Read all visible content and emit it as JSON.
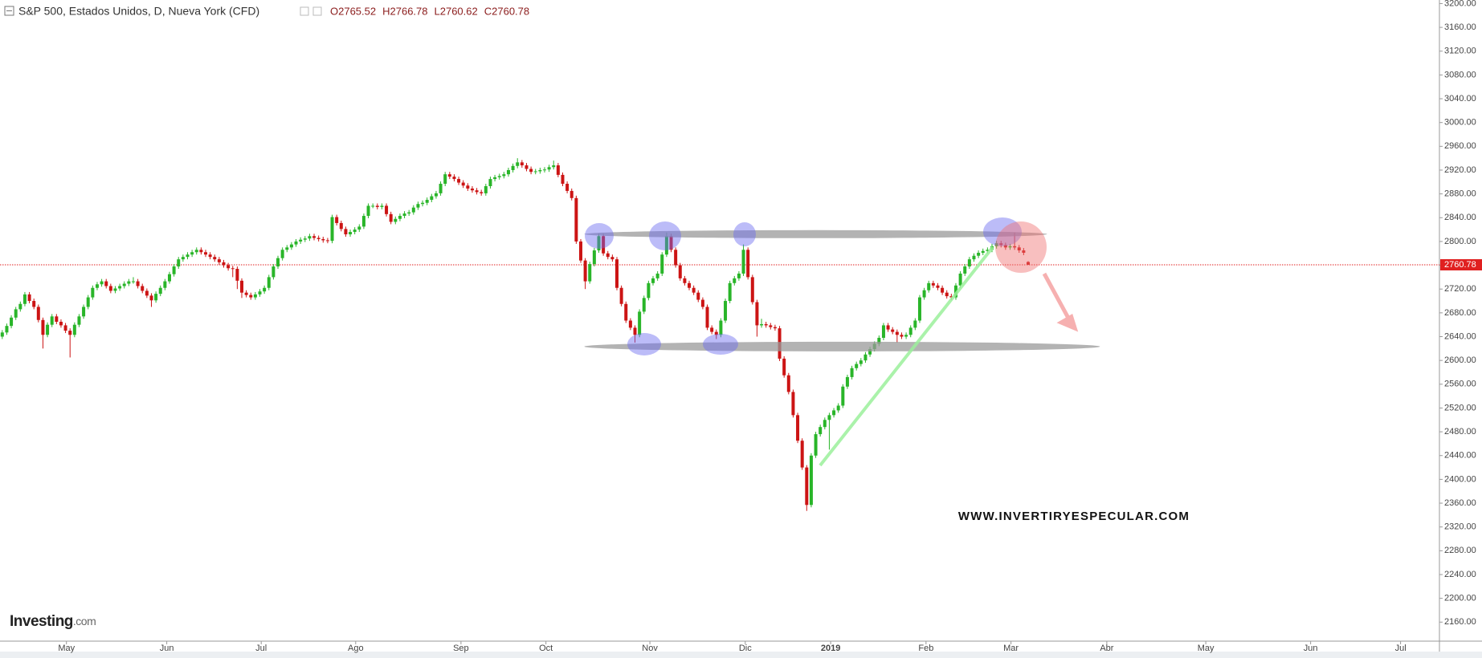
{
  "chart_data": {
    "type": "candlestick",
    "title": "S&P 500, Estados Unidos, D, Nueva York (CFD)",
    "ohlc_header": [
      "O2765.52",
      "H2766.78",
      "L2760.62",
      "C2760.78"
    ],
    "watermark": "WWW.INVERTIRYESPECULAR.COM",
    "logo": "Investing",
    "logo_suffix": ".com",
    "last_price": 2760.78,
    "last_price_label": "2760.78",
    "up_color": "#29b529",
    "down_color": "#cc1414",
    "grid": false,
    "xlim": [
      -0.5,
      318
    ],
    "ylim": [
      2128,
      3206
    ],
    "xticks": [
      {
        "value": 14.2,
        "label": "May"
      },
      {
        "value": 36.4,
        "label": "Jun"
      },
      {
        "value": 57.3,
        "label": "Jul"
      },
      {
        "value": 78.2,
        "label": "Ago"
      },
      {
        "value": 101.5,
        "label": "Sep"
      },
      {
        "value": 120.3,
        "label": "Oct"
      },
      {
        "value": 143.3,
        "label": "Nov"
      },
      {
        "value": 164.4,
        "label": "Dic"
      },
      {
        "value": 183.3,
        "label": "2019"
      },
      {
        "value": 204.4,
        "label": "Feb"
      },
      {
        "value": 223.2,
        "label": "Mar"
      },
      {
        "value": 244.4,
        "label": "Abr"
      },
      {
        "value": 266.3,
        "label": "May"
      },
      {
        "value": 289.5,
        "label": "Jun"
      },
      {
        "value": 309.4,
        "label": "Jul"
      }
    ],
    "yticks": [
      {
        "value": 2160,
        "label": "2160.00"
      },
      {
        "value": 2200,
        "label": "2200.00"
      },
      {
        "value": 2240,
        "label": "2240.00"
      },
      {
        "value": 2280,
        "label": "2280.00"
      },
      {
        "value": 2320,
        "label": "2320.00"
      },
      {
        "value": 2360,
        "label": "2360.00"
      },
      {
        "value": 2400,
        "label": "2400.00"
      },
      {
        "value": 2440,
        "label": "2440.00"
      },
      {
        "value": 2480,
        "label": "2480.00"
      },
      {
        "value": 2520,
        "label": "2520.00"
      },
      {
        "value": 2560,
        "label": "2560.00"
      },
      {
        "value": 2600,
        "label": "2600.00"
      },
      {
        "value": 2640,
        "label": "2640.00"
      },
      {
        "value": 2680,
        "label": "2680.00"
      },
      {
        "value": 2720,
        "label": "2720.00"
      },
      {
        "value": 2760,
        "label": "2760.00"
      },
      {
        "value": 2800,
        "label": "2800.00"
      },
      {
        "value": 2840,
        "label": "2840.00"
      },
      {
        "value": 2880,
        "label": "2880.00"
      },
      {
        "value": 2920,
        "label": "2920.00"
      },
      {
        "value": 2960,
        "label": "2960.00"
      },
      {
        "value": 3000,
        "label": "3000.00"
      },
      {
        "value": 3040,
        "label": "3040.00"
      },
      {
        "value": 3080,
        "label": "3080.00"
      },
      {
        "value": 3120,
        "label": "3120.00"
      },
      {
        "value": 3160,
        "label": "3160.00"
      },
      {
        "value": 3200,
        "label": "3200.00"
      }
    ],
    "candles": [
      [
        2640,
        2651,
        2636,
        2647
      ],
      [
        2647,
        2662,
        2643,
        2658
      ],
      [
        2658,
        2676,
        2654,
        2672
      ],
      [
        2672,
        2690,
        2668,
        2686
      ],
      [
        2686,
        2699,
        2682,
        2695
      ],
      [
        2695,
        2715,
        2691,
        2711
      ],
      [
        2711,
        2715,
        2696,
        2700
      ],
      [
        2700,
        2704,
        2686,
        2690
      ],
      [
        2690,
        2694,
        2664,
        2668
      ],
      [
        2668,
        2672,
        2620,
        2643
      ],
      [
        2643,
        2664,
        2639,
        2660
      ],
      [
        2660,
        2678,
        2656,
        2674
      ],
      [
        2674,
        2678,
        2661,
        2665
      ],
      [
        2665,
        2669,
        2655,
        2659
      ],
      [
        2659,
        2663,
        2646,
        2650
      ],
      [
        2650,
        2654,
        2605,
        2643
      ],
      [
        2643,
        2664,
        2639,
        2660
      ],
      [
        2660,
        2678,
        2656,
        2674
      ],
      [
        2674,
        2694,
        2670,
        2690
      ],
      [
        2690,
        2710,
        2686,
        2706
      ],
      [
        2706,
        2726,
        2702,
        2722
      ],
      [
        2722,
        2732,
        2718,
        2728
      ],
      [
        2728,
        2737,
        2724,
        2733
      ],
      [
        2733,
        2737,
        2721,
        2725
      ],
      [
        2725,
        2729,
        2713,
        2717
      ],
      [
        2717,
        2725,
        2713,
        2721
      ],
      [
        2721,
        2729,
        2717,
        2725
      ],
      [
        2725,
        2733,
        2721,
        2729
      ],
      [
        2729,
        2737,
        2725,
        2733
      ],
      [
        2733,
        2740,
        2729,
        2733
      ],
      [
        2733,
        2737,
        2721,
        2725
      ],
      [
        2725,
        2729,
        2713,
        2717
      ],
      [
        2717,
        2721,
        2705,
        2709
      ],
      [
        2709,
        2713,
        2690,
        2701
      ],
      [
        2701,
        2716,
        2697,
        2712
      ],
      [
        2712,
        2726,
        2708,
        2722
      ],
      [
        2722,
        2737,
        2718,
        2733
      ],
      [
        2733,
        2749,
        2729,
        2745
      ],
      [
        2745,
        2762,
        2741,
        2758
      ],
      [
        2758,
        2774,
        2754,
        2770
      ],
      [
        2770,
        2778,
        2766,
        2774
      ],
      [
        2774,
        2782,
        2770,
        2778
      ],
      [
        2778,
        2786,
        2774,
        2782
      ],
      [
        2782,
        2790,
        2778,
        2786
      ],
      [
        2786,
        2790,
        2778,
        2782
      ],
      [
        2782,
        2786,
        2774,
        2778
      ],
      [
        2778,
        2782,
        2770,
        2774
      ],
      [
        2774,
        2778,
        2766,
        2770
      ],
      [
        2770,
        2774,
        2761,
        2765
      ],
      [
        2765,
        2769,
        2756,
        2760
      ],
      [
        2760,
        2764,
        2751,
        2755
      ],
      [
        2755,
        2759,
        2740,
        2754
      ],
      [
        2754,
        2758,
        2720,
        2734
      ],
      [
        2734,
        2738,
        2705,
        2714
      ],
      [
        2714,
        2718,
        2706,
        2710
      ],
      [
        2710,
        2714,
        2702,
        2706
      ],
      [
        2706,
        2715,
        2702,
        2711
      ],
      [
        2711,
        2720,
        2707,
        2716
      ],
      [
        2716,
        2726,
        2712,
        2722
      ],
      [
        2722,
        2744,
        2718,
        2740
      ],
      [
        2740,
        2762,
        2736,
        2758
      ],
      [
        2758,
        2776,
        2754,
        2772
      ],
      [
        2772,
        2790,
        2768,
        2786
      ],
      [
        2786,
        2794,
        2782,
        2790
      ],
      [
        2790,
        2799,
        2786,
        2795
      ],
      [
        2795,
        2804,
        2791,
        2800
      ],
      [
        2800,
        2807,
        2796,
        2803
      ],
      [
        2803,
        2809,
        2799,
        2805
      ],
      [
        2805,
        2813,
        2801,
        2809
      ],
      [
        2809,
        2813,
        2802,
        2806
      ],
      [
        2806,
        2810,
        2800,
        2804
      ],
      [
        2804,
        2808,
        2798,
        2802
      ],
      [
        2802,
        2806,
        2797,
        2801
      ],
      [
        2801,
        2845,
        2797,
        2841
      ],
      [
        2841,
        2845,
        2827,
        2831
      ],
      [
        2831,
        2835,
        2817,
        2821
      ],
      [
        2821,
        2825,
        2808,
        2812
      ],
      [
        2812,
        2820,
        2808,
        2816
      ],
      [
        2816,
        2824,
        2812,
        2820
      ],
      [
        2820,
        2829,
        2816,
        2825
      ],
      [
        2825,
        2847,
        2821,
        2843
      ],
      [
        2843,
        2864,
        2839,
        2860
      ],
      [
        2860,
        2864,
        2856,
        2860
      ],
      [
        2860,
        2864,
        2854,
        2858
      ],
      [
        2858,
        2864,
        2854,
        2860
      ],
      [
        2860,
        2864,
        2842,
        2846
      ],
      [
        2846,
        2850,
        2829,
        2833
      ],
      [
        2833,
        2842,
        2829,
        2838
      ],
      [
        2838,
        2847,
        2834,
        2843
      ],
      [
        2843,
        2851,
        2839,
        2847
      ],
      [
        2847,
        2853,
        2843,
        2849
      ],
      [
        2849,
        2861,
        2845,
        2857
      ],
      [
        2857,
        2867,
        2853,
        2863
      ],
      [
        2863,
        2869,
        2859,
        2865
      ],
      [
        2865,
        2874,
        2861,
        2870
      ],
      [
        2870,
        2880,
        2866,
        2876
      ],
      [
        2876,
        2885,
        2872,
        2881
      ],
      [
        2881,
        2901,
        2877,
        2897
      ],
      [
        2897,
        2917,
        2893,
        2913
      ],
      [
        2913,
        2917,
        2905,
        2909
      ],
      [
        2909,
        2913,
        2901,
        2905
      ],
      [
        2905,
        2909,
        2895,
        2899
      ],
      [
        2899,
        2903,
        2890,
        2894
      ],
      [
        2894,
        2898,
        2885,
        2889
      ],
      [
        2889,
        2893,
        2882,
        2886
      ],
      [
        2886,
        2890,
        2879,
        2883
      ],
      [
        2883,
        2887,
        2877,
        2881
      ],
      [
        2881,
        2897,
        2877,
        2893
      ],
      [
        2893,
        2909,
        2889,
        2905
      ],
      [
        2905,
        2912,
        2901,
        2908
      ],
      [
        2908,
        2914,
        2904,
        2910
      ],
      [
        2910,
        2917,
        2906,
        2913
      ],
      [
        2913,
        2924,
        2909,
        2920
      ],
      [
        2920,
        2931,
        2916,
        2927
      ],
      [
        2927,
        2940,
        2923,
        2933
      ],
      [
        2933,
        2937,
        2924,
        2928
      ],
      [
        2928,
        2932,
        2918,
        2922
      ],
      [
        2922,
        2926,
        2913,
        2917
      ],
      [
        2917,
        2922,
        2913,
        2918
      ],
      [
        2918,
        2924,
        2914,
        2920
      ],
      [
        2920,
        2925,
        2916,
        2921
      ],
      [
        2921,
        2929,
        2917,
        2925
      ],
      [
        2925,
        2936,
        2921,
        2928
      ],
      [
        2928,
        2932,
        2908,
        2912
      ],
      [
        2912,
        2916,
        2893,
        2897
      ],
      [
        2897,
        2901,
        2881,
        2885
      ],
      [
        2885,
        2889,
        2869,
        2873
      ],
      [
        2873,
        2877,
        2796,
        2800
      ],
      [
        2800,
        2804,
        2764,
        2768
      ],
      [
        2768,
        2772,
        2720,
        2733
      ],
      [
        2733,
        2766,
        2729,
        2762
      ],
      [
        2762,
        2789,
        2758,
        2785
      ],
      [
        2785,
        2813,
        2781,
        2809
      ],
      [
        2809,
        2813,
        2776,
        2780
      ],
      [
        2780,
        2784,
        2770,
        2774
      ],
      [
        2774,
        2778,
        2766,
        2770
      ],
      [
        2770,
        2774,
        2718,
        2722
      ],
      [
        2722,
        2726,
        2691,
        2695
      ],
      [
        2695,
        2699,
        2663,
        2667
      ],
      [
        2667,
        2671,
        2651,
        2655
      ],
      [
        2655,
        2659,
        2630,
        2643
      ],
      [
        2643,
        2686,
        2639,
        2682
      ],
      [
        2682,
        2709,
        2678,
        2705
      ],
      [
        2705,
        2734,
        2701,
        2730
      ],
      [
        2730,
        2742,
        2726,
        2738
      ],
      [
        2738,
        2750,
        2734,
        2746
      ],
      [
        2746,
        2782,
        2742,
        2778
      ],
      [
        2778,
        2815,
        2774,
        2809
      ],
      [
        2809,
        2813,
        2782,
        2786
      ],
      [
        2786,
        2790,
        2756,
        2760
      ],
      [
        2760,
        2764,
        2734,
        2738
      ],
      [
        2738,
        2742,
        2726,
        2730
      ],
      [
        2730,
        2734,
        2718,
        2722
      ],
      [
        2722,
        2726,
        2710,
        2714
      ],
      [
        2714,
        2718,
        2698,
        2702
      ],
      [
        2702,
        2706,
        2686,
        2690
      ],
      [
        2690,
        2694,
        2651,
        2655
      ],
      [
        2655,
        2659,
        2644,
        2648
      ],
      [
        2648,
        2652,
        2636,
        2643
      ],
      [
        2643,
        2671,
        2639,
        2667
      ],
      [
        2667,
        2704,
        2663,
        2700
      ],
      [
        2700,
        2734,
        2696,
        2730
      ],
      [
        2730,
        2742,
        2726,
        2738
      ],
      [
        2738,
        2750,
        2734,
        2746
      ],
      [
        2746,
        2795,
        2742,
        2786
      ],
      [
        2786,
        2790,
        2736,
        2740
      ],
      [
        2740,
        2744,
        2694,
        2698
      ],
      [
        2698,
        2702,
        2640,
        2659
      ],
      [
        2659,
        2670,
        2655,
        2661
      ],
      [
        2661,
        2665,
        2655,
        2659
      ],
      [
        2659,
        2663,
        2652,
        2656
      ],
      [
        2656,
        2660,
        2650,
        2654
      ],
      [
        2654,
        2658,
        2599,
        2603
      ],
      [
        2603,
        2607,
        2571,
        2575
      ],
      [
        2575,
        2579,
        2543,
        2547
      ],
      [
        2547,
        2551,
        2504,
        2508
      ],
      [
        2508,
        2512,
        2461,
        2465
      ],
      [
        2465,
        2469,
        2416,
        2420
      ],
      [
        2420,
        2424,
        2347,
        2357
      ],
      [
        2357,
        2444,
        2353,
        2440
      ],
      [
        2440,
        2480,
        2436,
        2476
      ],
      [
        2476,
        2492,
        2472,
        2488
      ],
      [
        2488,
        2504,
        2484,
        2500
      ],
      [
        2500,
        2512,
        2450,
        2508
      ],
      [
        2508,
        2520,
        2504,
        2516
      ],
      [
        2516,
        2528,
        2512,
        2524
      ],
      [
        2524,
        2560,
        2520,
        2556
      ],
      [
        2556,
        2576,
        2552,
        2572
      ],
      [
        2572,
        2591,
        2568,
        2587
      ],
      [
        2587,
        2598,
        2583,
        2594
      ],
      [
        2594,
        2604,
        2590,
        2600
      ],
      [
        2600,
        2614,
        2596,
        2610
      ],
      [
        2610,
        2623,
        2606,
        2619
      ],
      [
        2619,
        2632,
        2615,
        2628
      ],
      [
        2628,
        2642,
        2624,
        2638
      ],
      [
        2638,
        2663,
        2634,
        2659
      ],
      [
        2659,
        2663,
        2648,
        2652
      ],
      [
        2652,
        2656,
        2644,
        2648
      ],
      [
        2648,
        2652,
        2630,
        2643
      ],
      [
        2643,
        2647,
        2636,
        2640
      ],
      [
        2640,
        2647,
        2636,
        2643
      ],
      [
        2643,
        2659,
        2639,
        2655
      ],
      [
        2655,
        2671,
        2651,
        2667
      ],
      [
        2667,
        2710,
        2663,
        2706
      ],
      [
        2706,
        2722,
        2702,
        2718
      ],
      [
        2718,
        2734,
        2714,
        2730
      ],
      [
        2730,
        2734,
        2722,
        2726
      ],
      [
        2726,
        2730,
        2718,
        2722
      ],
      [
        2722,
        2726,
        2710,
        2714
      ],
      [
        2714,
        2718,
        2704,
        2708
      ],
      [
        2708,
        2712,
        2702,
        2706
      ],
      [
        2706,
        2730,
        2702,
        2726
      ],
      [
        2726,
        2750,
        2722,
        2746
      ],
      [
        2746,
        2762,
        2742,
        2758
      ],
      [
        2758,
        2774,
        2754,
        2770
      ],
      [
        2770,
        2780,
        2766,
        2776
      ],
      [
        2776,
        2785,
        2772,
        2781
      ],
      [
        2781,
        2788,
        2777,
        2784
      ],
      [
        2784,
        2790,
        2780,
        2786
      ],
      [
        2786,
        2796,
        2782,
        2792
      ],
      [
        2792,
        2801,
        2788,
        2797
      ],
      [
        2797,
        2801,
        2790,
        2794
      ],
      [
        2794,
        2798,
        2786,
        2790
      ],
      [
        2790,
        2796,
        2786,
        2792
      ],
      [
        2792,
        2815,
        2786,
        2790
      ],
      [
        2790,
        2794,
        2781,
        2785
      ],
      [
        2785,
        2789,
        2777,
        2781
      ],
      [
        2765.52,
        2766.78,
        2760.62,
        2760.78
      ]
    ]
  }
}
